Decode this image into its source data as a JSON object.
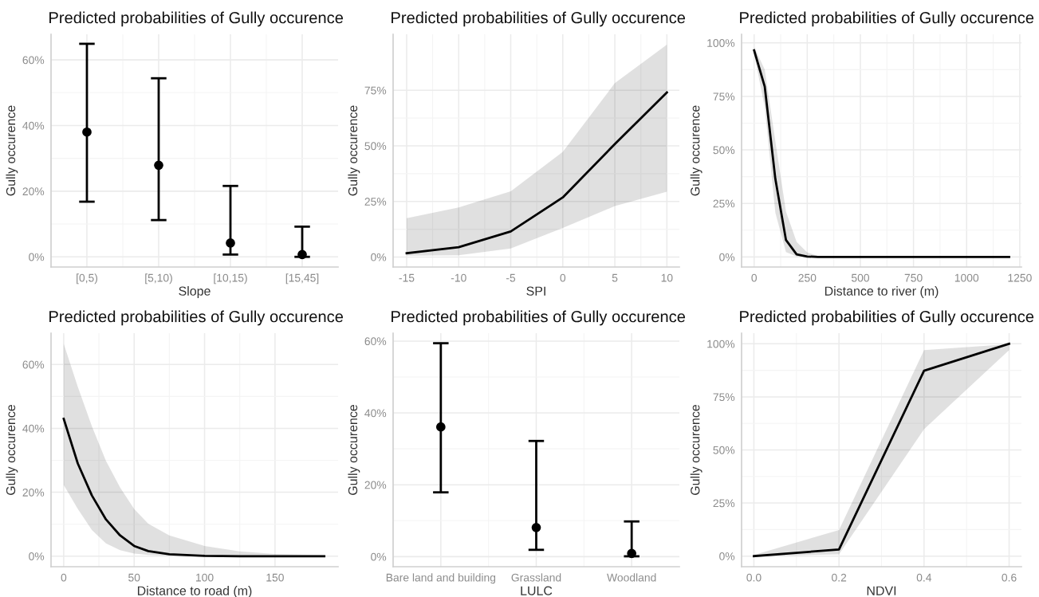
{
  "chart_data": [
    {
      "type": "scatter",
      "title": "Predicted probabilities of Gully occurence",
      "xlabel": "Slope",
      "ylabel": "Gully occurence",
      "categories": [
        "[0,5)",
        "[5,10)",
        "[10,15)",
        "[15,45]"
      ],
      "series": [
        {
          "color": "#000000",
          "values": [
            38.0,
            27.9,
            4.2,
            0.7
          ],
          "errors": [
            [
              16.8,
              64.9
            ],
            [
              11.2,
              54.4
            ],
            [
              0.7,
              21.6
            ],
            [
              0,
              9.2
            ]
          ]
        }
      ],
      "ylim": [
        -3.1,
        67.8
      ],
      "yticks": [
        {
          "value": 0,
          "label": "0%"
        },
        {
          "value": 20,
          "label": "20%"
        },
        {
          "value": 40,
          "label": "40%"
        },
        {
          "value": 60,
          "label": "60%"
        }
      ],
      "grid": true,
      "marker": "circle"
    },
    {
      "type": "line",
      "title": "Predicted probabilities of Gully occurence",
      "xlabel": "SPI",
      "ylabel": "Gully occurence",
      "series": [
        {
          "color": "#000000",
          "x": [
            -15,
            -10,
            -5,
            0,
            5,
            10
          ],
          "values": [
            1.7,
            4.4,
            11.5,
            26.8,
            50.8,
            74.0
          ],
          "lower": [
            0.6,
            0.8,
            3.8,
            13.1,
            22.9,
            29.4
          ],
          "upper": [
            17.5,
            22.3,
            29.6,
            47.3,
            78.2,
            95.5
          ]
        }
      ],
      "xlim": [
        -16.3,
        11.2
      ],
      "xticks": [
        -15,
        -10,
        -5,
        0,
        5,
        10
      ],
      "ylim": [
        -4.5,
        100.2
      ],
      "yticks": [
        {
          "value": 0,
          "label": "0%"
        },
        {
          "value": 25,
          "label": "25%"
        },
        {
          "value": 50,
          "label": "50%"
        },
        {
          "value": 75,
          "label": "75%"
        }
      ],
      "grid": true
    },
    {
      "type": "line",
      "title": "Predicted probabilities of Gully occurence",
      "xlabel": "Distance to river (m)",
      "ylabel": "Gully occurence",
      "series": [
        {
          "color": "#000000",
          "x": [
            0,
            50,
            100,
            150,
            200,
            250,
            300,
            350,
            1200
          ],
          "values": [
            96.5,
            79.6,
            36.4,
            7.9,
            1.2,
            0.2,
            0,
            0,
            0
          ],
          "lower": [
            94.7,
            70.0,
            20.6,
            2.3,
            0.2,
            0,
            0,
            0,
            0
          ],
          "upper": [
            98.1,
            87.5,
            54.0,
            21.2,
            7.0,
            2.1,
            0.5,
            0,
            0
          ]
        }
      ],
      "xlim": [
        -59,
        1258
      ],
      "xticks": [
        0,
        250,
        500,
        750,
        1000,
        1250
      ],
      "ylim": [
        -4.7,
        104
      ],
      "yticks": [
        {
          "value": 0,
          "label": "0%"
        },
        {
          "value": 25,
          "label": "25%"
        },
        {
          "value": 50,
          "label": "50%"
        },
        {
          "value": 75,
          "label": "75%"
        },
        {
          "value": 100,
          "label": "100%"
        }
      ],
      "grid": true
    },
    {
      "type": "line",
      "title": "Predicted probabilities of Gully occurence",
      "xlabel": "Distance to road (m)",
      "ylabel": "Gully occurence",
      "series": [
        {
          "color": "#000000",
          "x": [
            0,
            10,
            20,
            30,
            40,
            50,
            60,
            75,
            100,
            125,
            150,
            185
          ],
          "values": [
            43.0,
            29.0,
            19.0,
            11.5,
            6.5,
            3.2,
            1.6,
            0.6,
            0.1,
            0,
            0,
            0
          ],
          "lower": [
            22.3,
            14.8,
            8.2,
            4.0,
            1.9,
            0.8,
            0.4,
            0.1,
            0,
            0,
            0,
            0
          ],
          "upper": [
            66.5,
            53.0,
            40.7,
            29.8,
            21.5,
            14.8,
            10.2,
            6.5,
            3.2,
            1.5,
            0.7,
            0.3
          ]
        }
      ],
      "xlim": [
        -9,
        194.8
      ],
      "xticks": [
        0,
        50,
        100,
        150
      ],
      "ylim": [
        -3.3,
        69.8
      ],
      "yticks": [
        {
          "value": 0,
          "label": "0%"
        },
        {
          "value": 20,
          "label": "20%"
        },
        {
          "value": 40,
          "label": "40%"
        },
        {
          "value": 60,
          "label": "60%"
        }
      ],
      "grid": true
    },
    {
      "type": "scatter",
      "title": "Predicted probabilities of Gully occurence",
      "xlabel": "LULC",
      "ylabel": "Gully occurence",
      "categories": [
        "Bare land and building",
        "Grassland",
        "Woodland"
      ],
      "series": [
        {
          "color": "#000000",
          "values": [
            36.1,
            8.1,
            0.9
          ],
          "errors": [
            [
              17.9,
              59.4
            ],
            [
              1.9,
              32.2
            ],
            [
              0.1,
              9.8
            ]
          ]
        }
      ],
      "ylim": [
        -2.8,
        62.2
      ],
      "yticks": [
        {
          "value": 0,
          "label": "0%"
        },
        {
          "value": 20,
          "label": "20%"
        },
        {
          "value": 40,
          "label": "40%"
        },
        {
          "value": 60,
          "label": "60%"
        }
      ],
      "grid": true,
      "marker": "circle"
    },
    {
      "type": "line",
      "title": "Predicted probabilities of Gully occurence",
      "xlabel": "NDVI",
      "ylabel": "Gully occurence",
      "series": [
        {
          "color": "#000000",
          "x": [
            0,
            0.2,
            0.4,
            0.6
          ],
          "values": [
            0,
            3.1,
            87.3,
            100
          ],
          "lower": [
            0,
            0.8,
            59.8,
            97.0
          ],
          "upper": [
            0.5,
            12.3,
            97.0,
            99.8
          ]
        }
      ],
      "xlim": [
        -0.029,
        0.629
      ],
      "xticks": [
        {
          "value": 0,
          "label": "0.0"
        },
        {
          "value": 0.2,
          "label": "0.2"
        },
        {
          "value": 0.4,
          "label": "0.4"
        },
        {
          "value": 0.6,
          "label": "0.6"
        }
      ],
      "ylim": [
        -5,
        105
      ],
      "yticks": [
        {
          "value": 0,
          "label": "0%"
        },
        {
          "value": 25,
          "label": "25%"
        },
        {
          "value": 50,
          "label": "50%"
        },
        {
          "value": 75,
          "label": "75%"
        },
        {
          "value": 100,
          "label": "100%"
        }
      ],
      "grid": true
    }
  ]
}
